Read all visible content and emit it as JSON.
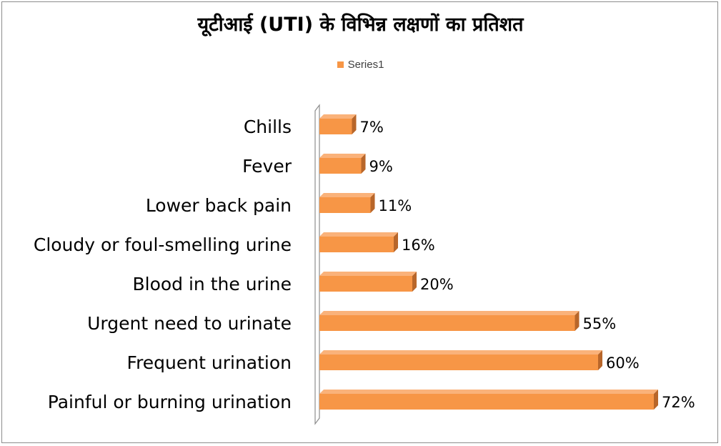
{
  "chart_data": {
    "type": "bar",
    "orientation": "horizontal",
    "title": "यूटीआई (UTI) के विभिन्न लक्षणों का प्रतिशत",
    "legend": {
      "position": "top",
      "entries": [
        "Series1"
      ]
    },
    "categories": [
      "Chills",
      "Fever",
      "Lower back pain",
      "Cloudy or foul-smelling urine",
      "Blood in the urine",
      "Urgent need to urinate",
      "Frequent urination",
      "Painful or burning urination"
    ],
    "series": [
      {
        "name": "Series1",
        "values": [
          7,
          9,
          11,
          16,
          20,
          55,
          60,
          72
        ],
        "data_labels": [
          "7%",
          "9%",
          "11%",
          "16%",
          "20%",
          "55%",
          "60%",
          "72%"
        ]
      }
    ],
    "xlim": [
      0,
      80
    ],
    "grid": false,
    "colors": {
      "bar": "#f79646",
      "bar_side": "#b8662a",
      "bar_top": "#fab27a"
    }
  }
}
